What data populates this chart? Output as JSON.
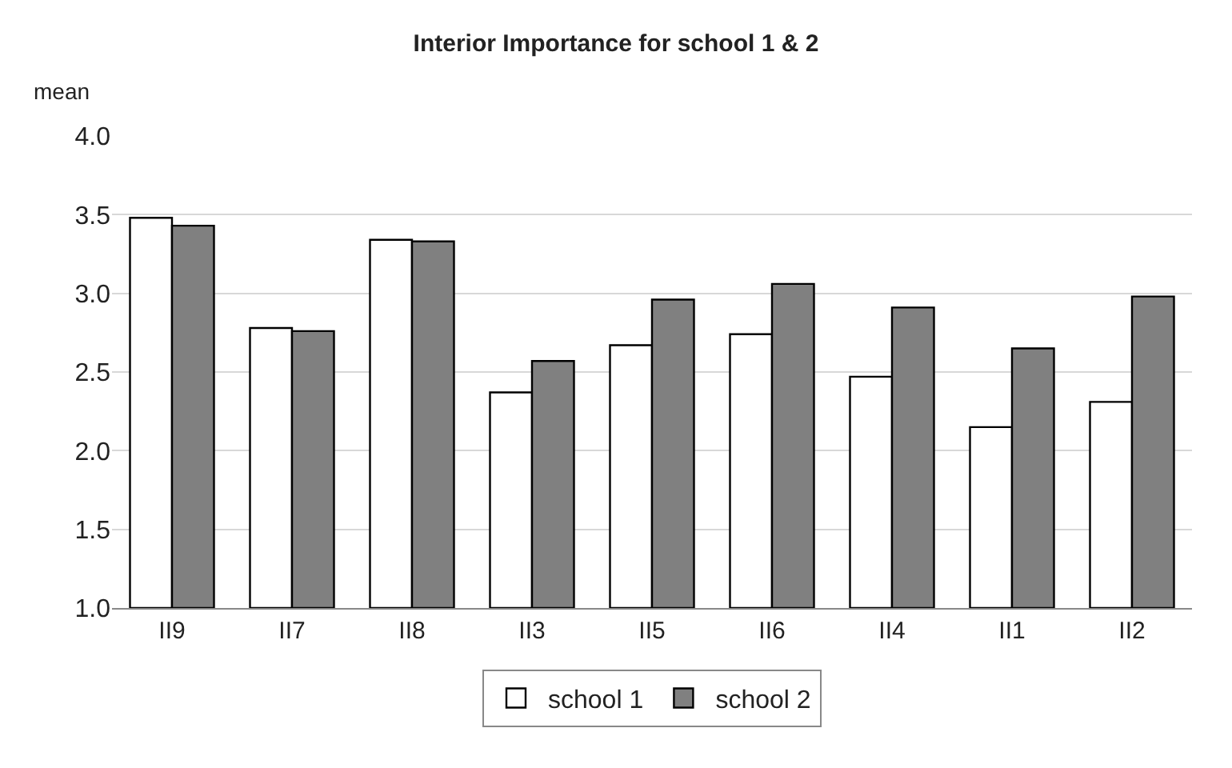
{
  "chart_data": {
    "type": "bar",
    "title": "Interior Importance for school 1 & 2",
    "ylabel": "mean",
    "categories": [
      "II9",
      "II7",
      "II8",
      "II3",
      "II5",
      "II6",
      "II4",
      "II1",
      "II2"
    ],
    "series": [
      {
        "name": "school 1",
        "color": "#ffffff",
        "values": [
          3.48,
          2.78,
          3.34,
          2.37,
          2.67,
          2.74,
          2.47,
          2.15,
          2.31
        ]
      },
      {
        "name": "school 2",
        "color": "#808080",
        "values": [
          3.43,
          2.76,
          3.33,
          2.57,
          2.96,
          3.06,
          2.91,
          2.65,
          2.98
        ]
      }
    ],
    "ylim": [
      1.0,
      4.0
    ],
    "yticks": [
      {
        "value": 1.0,
        "label": "1.0"
      },
      {
        "value": 1.5,
        "label": "1.5"
      },
      {
        "value": 2.0,
        "label": "2.0"
      },
      {
        "value": 2.5,
        "label": "2.5"
      },
      {
        "value": 3.0,
        "label": "3.0"
      },
      {
        "value": 3.5,
        "label": "3.5"
      },
      {
        "value": 4.0,
        "label": "4.0"
      }
    ],
    "grid": "y",
    "legend": "bottom"
  }
}
